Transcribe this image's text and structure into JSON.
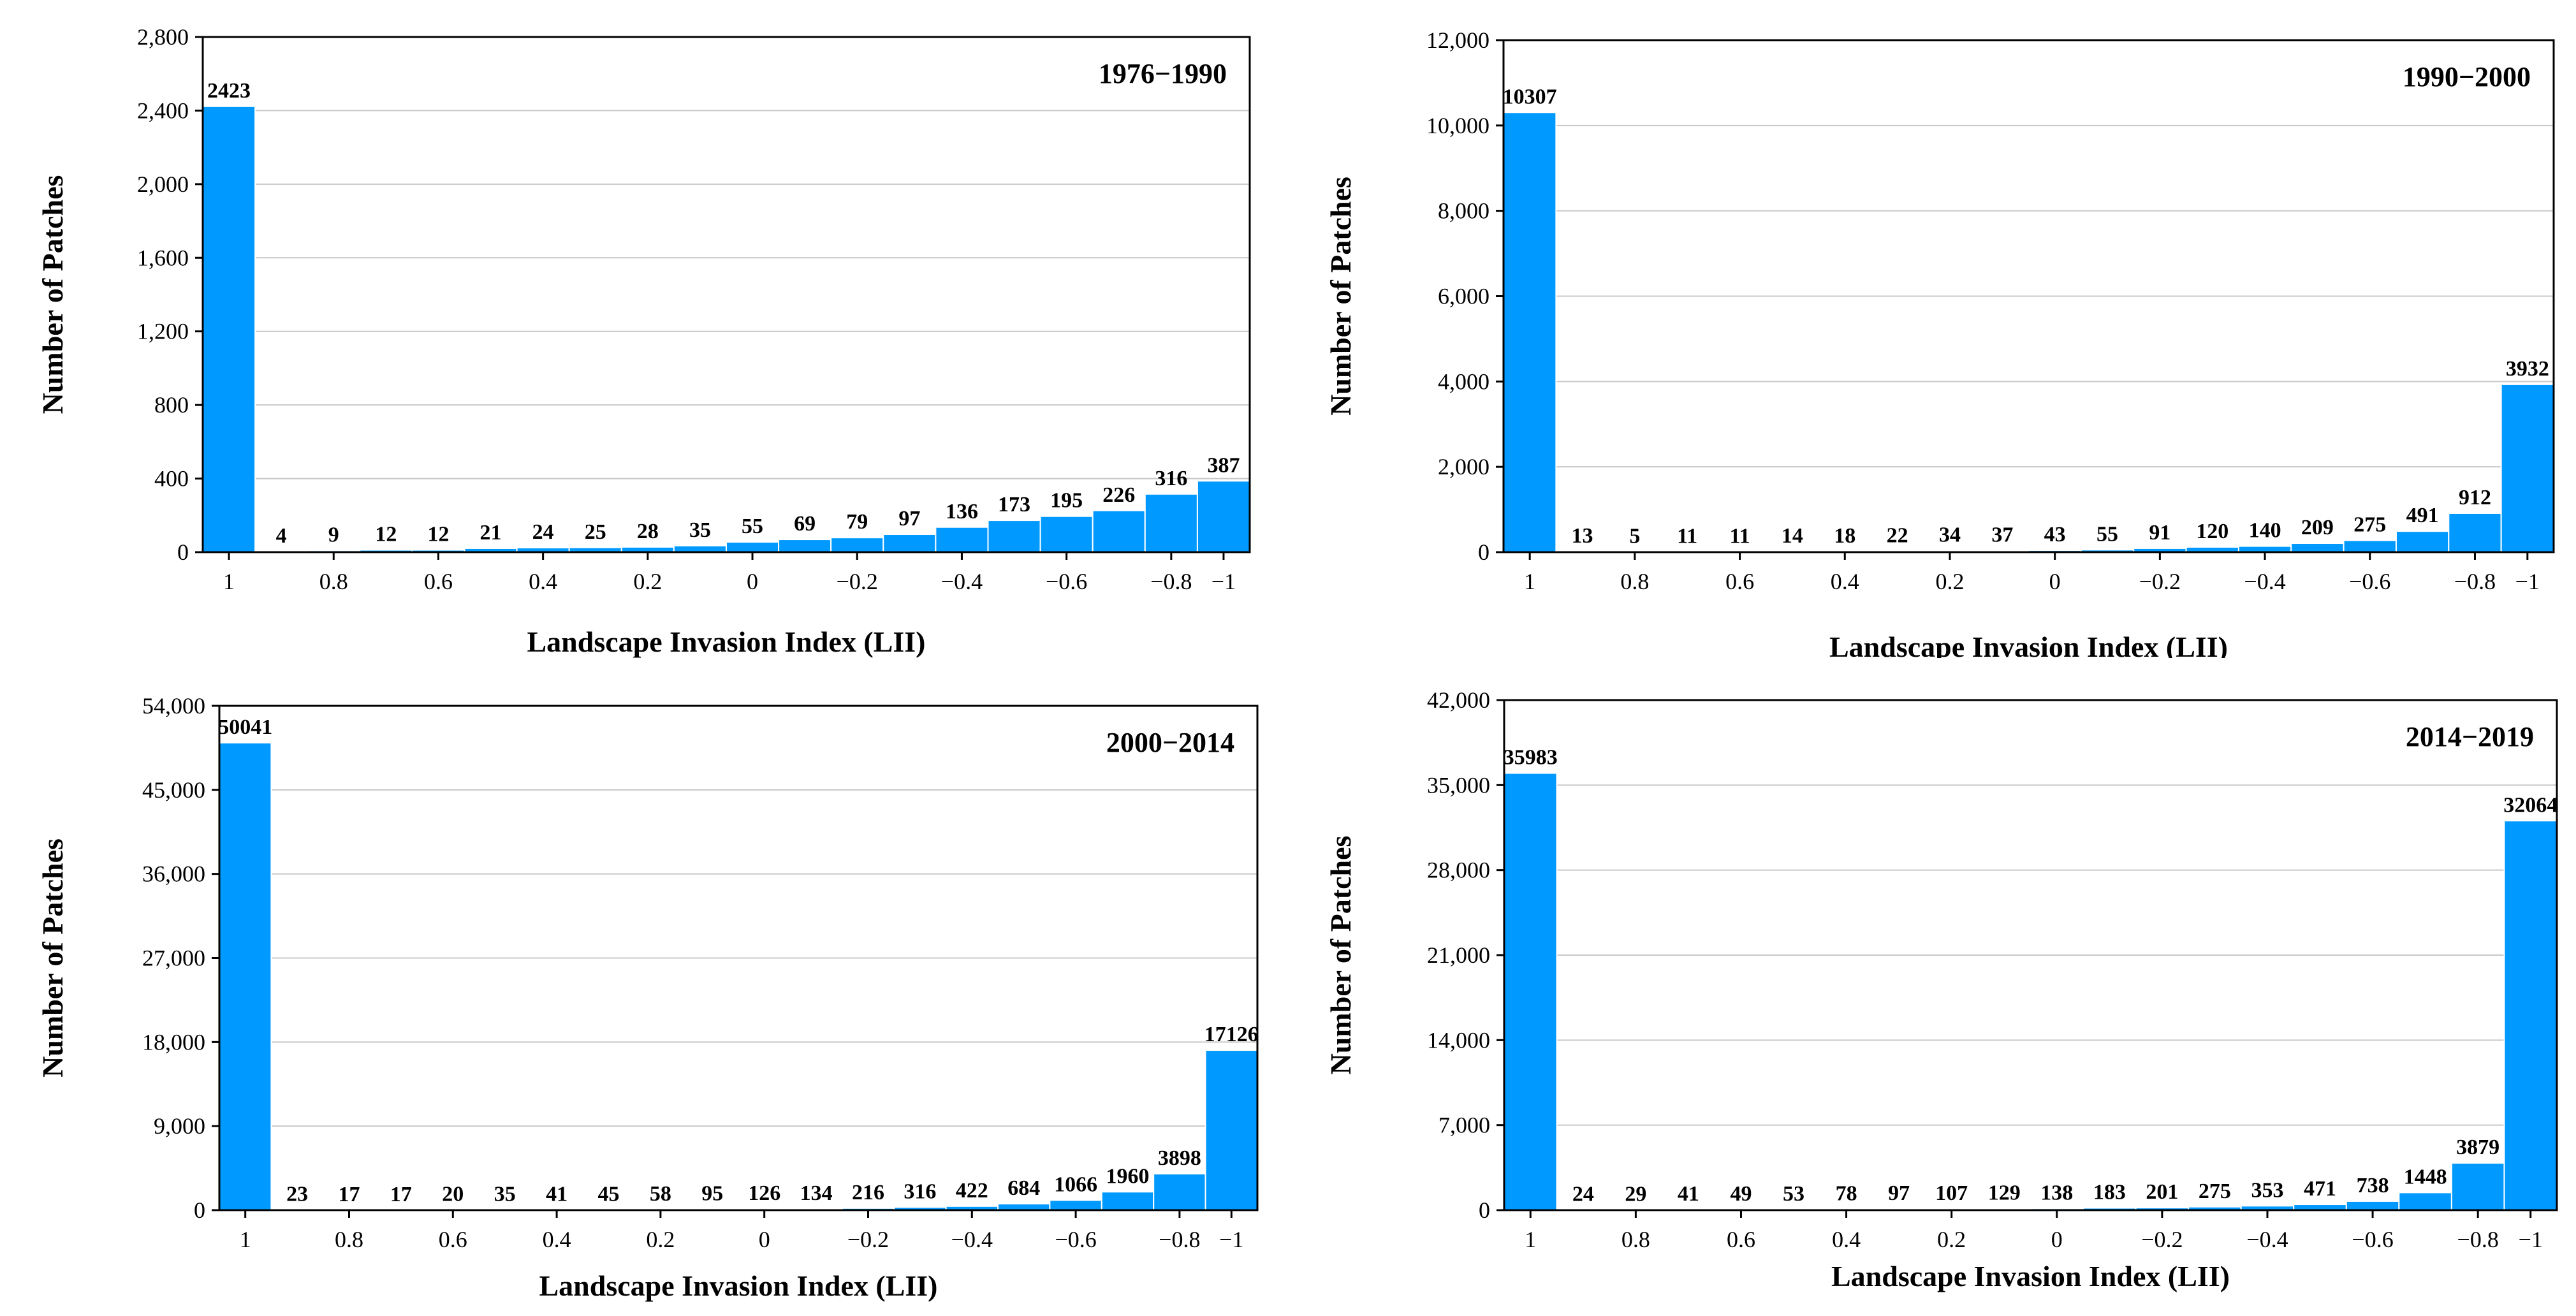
{
  "colors": {
    "bar": "#0099ff",
    "bar_edge": "#ffffff",
    "grid": "#c8c8c8",
    "axis": "#000000"
  },
  "chart_data": [
    {
      "type": "bar",
      "title": "1976−1990",
      "xlabel": "Landscape Invasion Index (LII)",
      "ylabel": "Number of Patches",
      "ylim": [
        0,
        2800
      ],
      "yticks": [
        "0",
        "400",
        "800",
        "1,200",
        "1,600",
        "2,000",
        "2,400",
        "2,800"
      ],
      "xticks": [
        "1",
        "0.8",
        "0.6",
        "0.4",
        "0.2",
        "0",
        "−0.2",
        "−0.4",
        "−0.6",
        "−0.8",
        "−1"
      ],
      "values": [
        2423,
        4,
        9,
        12,
        12,
        21,
        24,
        25,
        28,
        35,
        55,
        69,
        79,
        97,
        136,
        173,
        195,
        226,
        316,
        387
      ]
    },
    {
      "type": "bar",
      "title": "1990−2000",
      "xlabel": "Landscape Invasion Index (LII)",
      "ylabel": "Number of Patches",
      "ylim": [
        0,
        12000
      ],
      "yticks": [
        "0",
        "2,000",
        "4,000",
        "6,000",
        "8,000",
        "10,000",
        "12,000"
      ],
      "xticks": [
        "1",
        "0.8",
        "0.6",
        "0.4",
        "0.2",
        "0",
        "−0.2",
        "−0.4",
        "−0.6",
        "−0.8",
        "−1"
      ],
      "values": [
        10307,
        13,
        5,
        11,
        11,
        14,
        18,
        22,
        34,
        37,
        43,
        55,
        91,
        120,
        140,
        209,
        275,
        491,
        912,
        3932
      ]
    },
    {
      "type": "bar",
      "title": "2000−2014",
      "xlabel": "Landscape Invasion Index (LII)",
      "ylabel": "Number of Patches",
      "ylim": [
        0,
        54000
      ],
      "yticks": [
        "0",
        "9,000",
        "18,000",
        "27,000",
        "36,000",
        "45,000",
        "54,000"
      ],
      "xticks": [
        "1",
        "0.8",
        "0.6",
        "0.4",
        "0.2",
        "0",
        "−0.2",
        "−0.4",
        "−0.6",
        "−0.8",
        "−1"
      ],
      "values": [
        50041,
        23,
        17,
        17,
        20,
        35,
        41,
        45,
        58,
        95,
        126,
        134,
        216,
        316,
        422,
        684,
        1066,
        1960,
        3898,
        17126
      ]
    },
    {
      "type": "bar",
      "title": "2014−2019",
      "xlabel": "Landscape Invasion Index (LII)",
      "ylabel": "Number of Patches",
      "ylim": [
        0,
        42000
      ],
      "yticks": [
        "0",
        "7,000",
        "14,000",
        "21,000",
        "28,000",
        "35,000",
        "42,000"
      ],
      "xticks": [
        "1",
        "0.8",
        "0.6",
        "0.4",
        "0.2",
        "0",
        "−0.2",
        "−0.4",
        "−0.6",
        "−0.8",
        "−1"
      ],
      "values": [
        35983,
        24,
        29,
        41,
        49,
        53,
        78,
        97,
        107,
        129,
        138,
        183,
        201,
        275,
        353,
        471,
        738,
        1448,
        3879,
        32064
      ]
    }
  ]
}
